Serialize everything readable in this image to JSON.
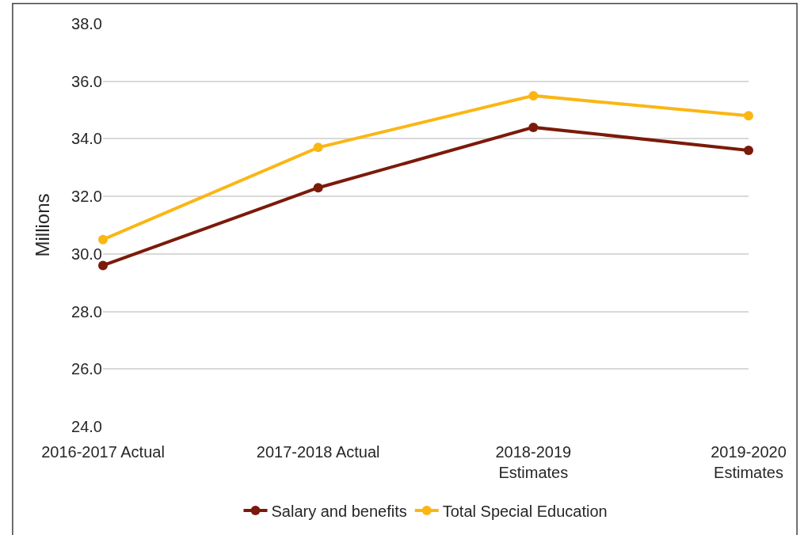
{
  "chart_data": {
    "type": "line",
    "ylabel": "Millions",
    "categories": [
      "2016-2017 Actual",
      "2017-2018 Actual",
      "2018-2019 Estimates",
      "2019-2020 Estimates"
    ],
    "series": [
      {
        "name": "Salary and benefits",
        "color": "#7b1a0a",
        "values": [
          29.6,
          32.3,
          34.4,
          33.6
        ]
      },
      {
        "name": "Total Special Education",
        "color": "#fbb614",
        "values": [
          30.5,
          33.7,
          35.5,
          34.8
        ]
      }
    ],
    "ylim": [
      24,
      38
    ],
    "yticks": [
      {
        "value": 24,
        "label": "24.0"
      },
      {
        "value": 26,
        "label": "26.0"
      },
      {
        "value": 28,
        "label": "28.0"
      },
      {
        "value": 30,
        "label": "30.0"
      },
      {
        "value": 32,
        "label": "32.0"
      },
      {
        "value": 34,
        "label": "34.0"
      },
      {
        "value": 36,
        "label": "36.0"
      },
      {
        "value": 38,
        "label": "38.0"
      }
    ],
    "grid": "y",
    "legend": "bottom",
    "marker": "circle",
    "line_style": "solid"
  }
}
